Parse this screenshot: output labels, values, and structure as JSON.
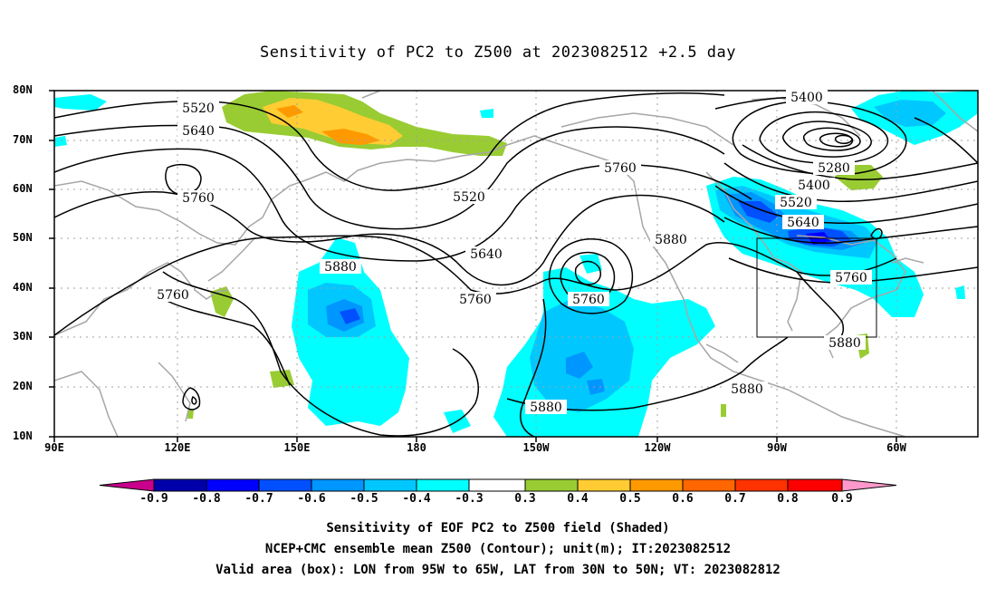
{
  "title": "Sensitivity of PC2 to Z500 at 2023082512 +2.5 day",
  "lat_labels": [
    "80N",
    "70N",
    "60N",
    "50N",
    "40N",
    "30N",
    "20N",
    "10N"
  ],
  "lon_labels": [
    "90E",
    "120E",
    "150E",
    "180",
    "150W",
    "120W",
    "90W",
    "60W"
  ],
  "contour_labels": {
    "c5520_a": "5520",
    "c5640_a": "5640",
    "c5760_a": "5760",
    "c5760_b": "5760",
    "c5880_a": "5880",
    "c5520_b": "5520",
    "c5640_b": "5640",
    "c5760_c": "5760",
    "c5760_d": "5760",
    "c5760_e": "5760",
    "c5880_b": "5880",
    "c5400": "5400",
    "c5280": "5280",
    "c5400_b": "5400",
    "c5520_c": "5520",
    "c5640_c": "5640",
    "c5760_f": "5760",
    "c5880_c": "5880",
    "c5880_d": "5880",
    "c5880_e": "5880"
  },
  "colorbar": {
    "labels": [
      "-0.9",
      "-0.8",
      "-0.7",
      "-0.6",
      "-0.5",
      "-0.4",
      "-0.3",
      "0.3",
      "0.4",
      "0.5",
      "0.6",
      "0.7",
      "0.8",
      "0.9"
    ],
    "colors": [
      "#c8008c",
      "#0000aa",
      "#0000ff",
      "#0050ff",
      "#0096ff",
      "#00c8ff",
      "#00ffff",
      "#ffffff",
      "#99cc33",
      "#ffcc33",
      "#ff9900",
      "#ff6600",
      "#ff3300",
      "#ff0000",
      "#ff99cc"
    ]
  },
  "captions": {
    "line1": "Sensitivity of EOF PC2 to Z500 field (Shaded)",
    "line2": "NCEP+CMC ensemble mean Z500 (Contour); unit(m); IT:2023082512",
    "line3": "Valid area (box): LON from 95W to 65W, LAT from 30N to 50N; VT: 2023082812"
  }
}
